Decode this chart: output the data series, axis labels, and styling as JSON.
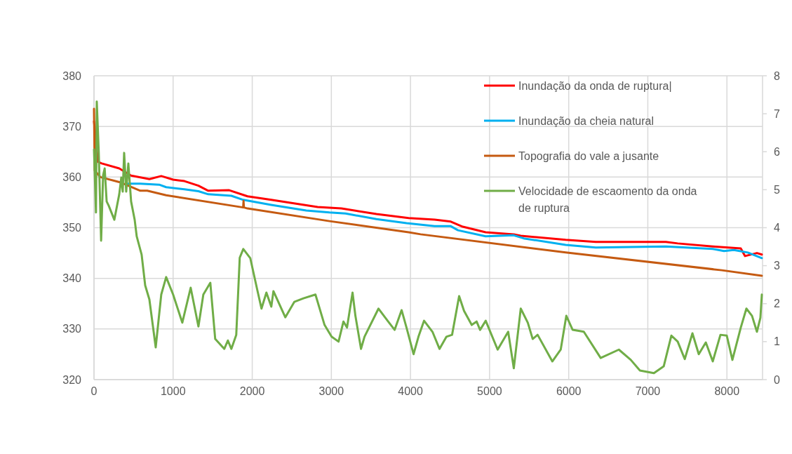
{
  "chart_data": {
    "type": "line",
    "xlim": [
      0,
      8450
    ],
    "xticks": [
      0,
      1000,
      2000,
      3000,
      4000,
      5000,
      6000,
      7000,
      8000
    ],
    "ylim": [
      320,
      380
    ],
    "yticks": [
      320,
      330,
      340,
      350,
      360,
      370,
      380
    ],
    "y2lim": [
      0,
      8
    ],
    "y2ticks": [
      0,
      1,
      2,
      3,
      4,
      5,
      6,
      7,
      8
    ],
    "grid": true,
    "legend": "top right",
    "series": [
      {
        "name": "Inundação da onda de ruptura|",
        "color": "#ff0000",
        "x": [
          0,
          50,
          97,
          319,
          469,
          700,
          850,
          1000,
          1143,
          1320,
          1444,
          1709,
          1940,
          2240,
          2826,
          3127,
          3570,
          3977,
          4305,
          4510,
          4660,
          4950,
          5305,
          5394,
          5961,
          6342,
          7228,
          7378,
          7821,
          8175,
          8229,
          8379,
          8441
        ],
        "values": [
          371,
          363,
          362.7,
          361.7,
          360.3,
          359.6,
          360.2,
          359.5,
          359.2,
          358.3,
          357.3,
          357.4,
          356.2,
          355.5,
          354.1,
          353.8,
          352.7,
          351.9,
          351.6,
          351.2,
          350.2,
          349.1,
          348.7,
          348.4,
          347.6,
          347.2,
          347.2,
          346.9,
          346.3,
          345.9,
          344.4,
          345,
          344.7
        ]
      },
      {
        "name": "Inundação da cheia natural",
        "color": "#00b0f0",
        "x": [
          407,
          585,
          824,
          912,
          1143,
          1320,
          1444,
          1736,
          1887,
          2240,
          2683,
          2976,
          3180,
          3570,
          3950,
          4305,
          4510,
          4600,
          4950,
          5305,
          5430,
          5961,
          6342,
          7228,
          7821,
          7963,
          8087,
          8264,
          8441
        ],
        "values": [
          358.7,
          358.7,
          358.5,
          358,
          357.6,
          357.2,
          356.6,
          356.3,
          355.5,
          354.5,
          353.4,
          353,
          352.8,
          351.7,
          350.9,
          350.3,
          350.3,
          349.5,
          348.3,
          348.5,
          347.9,
          346.6,
          346.1,
          346.3,
          345.8,
          345.4,
          345.6,
          345.1,
          344
        ]
      },
      {
        "name": "Topografia do vale a jusante",
        "color": "#c55a11",
        "x": [
          0,
          9,
          80,
          345,
          585,
          673,
          912,
          1885,
          1890,
          1895,
          1940,
          2976,
          3977,
          4128,
          5961,
          7936,
          8441
        ],
        "values": [
          373.5,
          361.3,
          360,
          358.9,
          357.3,
          357.3,
          356.4,
          354,
          355.3,
          354,
          353.8,
          351.3,
          349.1,
          348.7,
          345.1,
          341.6,
          340.5
        ]
      },
      {
        "name": "Velocidade de escaomento da onda de ruptura",
        "color": "#70ad47",
        "axis": "y2",
        "x": [
          0,
          25,
          35,
          60,
          90,
          115,
          135,
          160,
          186,
          257,
          319,
          345,
          363,
          381,
          407,
          434,
          469,
          514,
          540,
          602,
          647,
          700,
          780,
          850,
          912,
          1000,
          1116,
          1222,
          1320,
          1382,
          1470,
          1532,
          1647,
          1692,
          1736,
          1798,
          1842,
          1887,
          1975,
          2064,
          2117,
          2179,
          2241,
          2268,
          2418,
          2533,
          2648,
          2799,
          2914,
          3003,
          3091,
          3153,
          3198,
          3268,
          3304,
          3375,
          3419,
          3596,
          3711,
          3800,
          3888,
          3950,
          4039,
          4101,
          4172,
          4278,
          4367,
          4455,
          4526,
          4615,
          4677,
          4774,
          4836,
          4880,
          4951,
          5102,
          5235,
          5306,
          5394,
          5483,
          5545,
          5607,
          5793,
          5899,
          5970,
          6050,
          6191,
          6404,
          6634,
          6785,
          6900,
          7077,
          7201,
          7298,
          7378,
          7467,
          7564,
          7644,
          7733,
          7821,
          7918,
          7998,
          8069,
          8175,
          8246,
          8317,
          8379,
          8423,
          8441
        ],
        "values": [
          6.06,
          4.4,
          7.32,
          5.99,
          3.66,
          5.38,
          5.56,
          4.69,
          4.58,
          4.21,
          4.88,
          5.32,
          4.95,
          5.97,
          4.95,
          5.69,
          4.69,
          4.21,
          3.77,
          3.29,
          2.48,
          2.11,
          0.85,
          2.24,
          2.7,
          2.24,
          1.5,
          2.42,
          1.4,
          2.24,
          2.55,
          1.07,
          0.81,
          1.03,
          0.81,
          1.18,
          3.21,
          3.44,
          3.2,
          2.36,
          1.87,
          2.29,
          1.92,
          2.33,
          1.64,
          2.05,
          2.14,
          2.24,
          1.44,
          1.13,
          1,
          1.53,
          1.37,
          2.29,
          1.68,
          0.81,
          1.13,
          1.87,
          1.55,
          1.31,
          1.83,
          1.37,
          0.67,
          1.13,
          1.55,
          1.26,
          0.81,
          1.13,
          1.18,
          2.2,
          1.81,
          1.44,
          1.53,
          1.31,
          1.55,
          0.79,
          1.26,
          0.3,
          1.87,
          1.5,
          1.07,
          1.18,
          0.48,
          0.79,
          1.68,
          1.31,
          1.26,
          0.57,
          0.79,
          0.52,
          0.24,
          0.17,
          0.35,
          1.16,
          1,
          0.54,
          1.22,
          0.67,
          0.98,
          0.48,
          1.18,
          1.16,
          0.52,
          1.37,
          1.87,
          1.68,
          1.26,
          1.63,
          2.24
        ]
      }
    ]
  }
}
